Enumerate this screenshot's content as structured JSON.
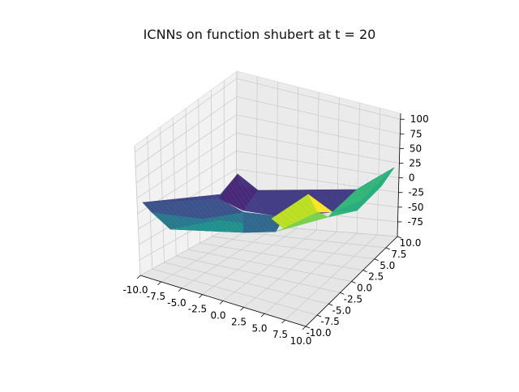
{
  "chart_data": {
    "type": "surface3d",
    "title": "ICNNs on function shubert at t = 20",
    "colormap": "viridis",
    "x_ticks": [
      "-10.0",
      "-7.5",
      "-5.0",
      "-2.5",
      "0.0",
      "2.5",
      "5.0",
      "7.5",
      "10.0"
    ],
    "y_ticks": [
      "-10.0",
      "-7.5",
      "-5.0",
      "-2.5",
      "0.0",
      "2.5",
      "5.0",
      "7.5",
      "10.0"
    ],
    "z_ticks": [
      "100",
      "75",
      "50",
      "25",
      "0",
      "-25",
      "-50",
      "-75"
    ],
    "xlim": [
      -10,
      10
    ],
    "ylim": [
      -10,
      10
    ],
    "zlim": [
      -100,
      110
    ],
    "grid": true,
    "surface_description": "piecewise-linear bowl, low plateau near -60 with sharp peaks near (-2.5, 10) and (5, 5), high corner near (10, 10)"
  }
}
